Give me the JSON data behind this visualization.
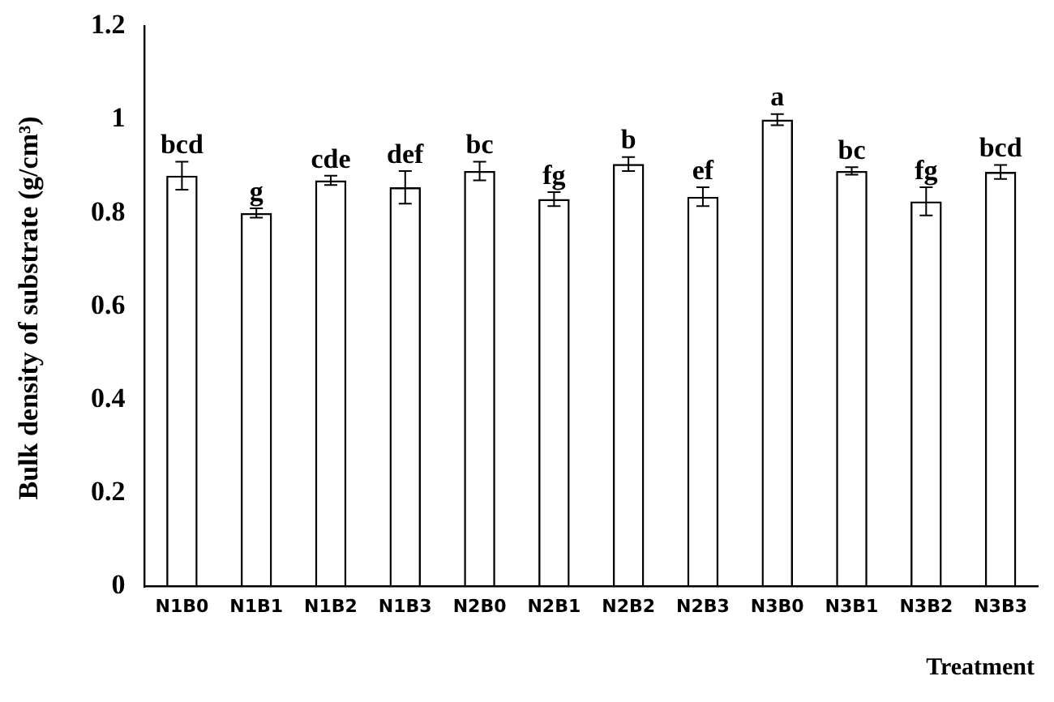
{
  "chart_data": {
    "type": "bar",
    "xlabel": "Treatment",
    "ylabel": "Bulk density of substrate (g/cm³)",
    "categories": [
      "N1B0",
      "N1B1",
      "N1B2",
      "N1B3",
      "N2B0",
      "N2B1",
      "N2B2",
      "N2B3",
      "N3B0",
      "N3B1",
      "N3B2",
      "N3B3"
    ],
    "values": [
      0.88,
      0.8,
      0.87,
      0.855,
      0.89,
      0.83,
      0.905,
      0.835,
      1.0,
      0.89,
      0.825,
      0.888
    ],
    "errors": [
      0.03,
      0.01,
      0.01,
      0.035,
      0.02,
      0.015,
      0.015,
      0.02,
      0.012,
      0.008,
      0.03,
      0.015
    ],
    "color": "#000000",
    "ylim": [
      0,
      1.2
    ],
    "yticks": [
      0,
      0.2,
      0.4,
      0.6,
      0.8,
      1,
      1.2
    ],
    "grid": false,
    "legend": false,
    "annotations": [
      {
        "text": "bcd",
        "x": "N1B0",
        "y": 0.91
      },
      {
        "text": "g",
        "x": "N1B1",
        "y": 0.81
      },
      {
        "text": "cde",
        "x": "N1B2",
        "y": 0.88
      },
      {
        "text": "def",
        "x": "N1B3",
        "y": 0.89
      },
      {
        "text": "bc",
        "x": "N2B0",
        "y": 0.91
      },
      {
        "text": "fg",
        "x": "N2B1",
        "y": 0.845
      },
      {
        "text": "b",
        "x": "N2B2",
        "y": 0.92
      },
      {
        "text": "ef",
        "x": "N2B3",
        "y": 0.855
      },
      {
        "text": "a",
        "x": "N3B0",
        "y": 1.012
      },
      {
        "text": "bc",
        "x": "N3B1",
        "y": 0.898
      },
      {
        "text": "fg",
        "x": "N3B2",
        "y": 0.855
      },
      {
        "text": "bcd",
        "x": "N3B3",
        "y": 0.903
      }
    ]
  }
}
